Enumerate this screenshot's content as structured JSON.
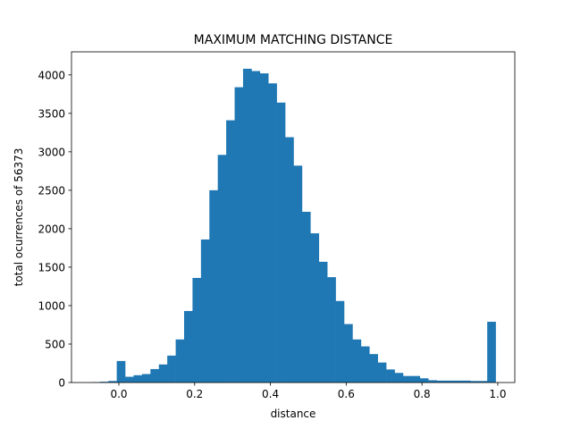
{
  "chart_data": {
    "type": "bar",
    "title": "MAXIMUM MATCHING DISTANCE",
    "xlabel": "distance",
    "ylabel": "total ocurrences of 56373",
    "xlim": [
      -0.125,
      1.045
    ],
    "ylim": [
      0,
      4300
    ],
    "xticks": [
      0.0,
      0.2,
      0.4,
      0.6,
      0.8,
      1.0
    ],
    "xtick_labels": [
      "0.0",
      "0.2",
      "0.4",
      "0.6",
      "0.8",
      "1.0"
    ],
    "yticks": [
      0,
      500,
      1000,
      1500,
      2000,
      2500,
      3000,
      3500,
      4000
    ],
    "ytick_labels": [
      "0",
      "500",
      "1000",
      "1500",
      "2000",
      "2500",
      "3000",
      "3500",
      "4000"
    ],
    "grid": false,
    "legend": "none",
    "bar_color": "#1f77b4",
    "bin_width": 0.0222,
    "bin_starts": [
      -0.0722,
      -0.05,
      -0.0278,
      -0.0056,
      0.0167,
      0.0389,
      0.0611,
      0.0833,
      0.1056,
      0.1278,
      0.15,
      0.1722,
      0.1944,
      0.2167,
      0.2389,
      0.2611,
      0.2833,
      0.3056,
      0.3278,
      0.35,
      0.3722,
      0.3944,
      0.4167,
      0.4389,
      0.4611,
      0.4833,
      0.5056,
      0.5278,
      0.55,
      0.5722,
      0.5944,
      0.6167,
      0.6389,
      0.6611,
      0.6833,
      0.7056,
      0.7278,
      0.75,
      0.7722,
      0.7944,
      0.8167,
      0.8389,
      0.8611,
      0.8833,
      0.9056,
      0.9278,
      0.95,
      0.9722,
      0.9944
    ],
    "values": [
      5,
      10,
      20,
      280,
      75,
      95,
      110,
      175,
      235,
      350,
      560,
      930,
      1360,
      1860,
      2500,
      2960,
      3410,
      3840,
      4080,
      4050,
      4020,
      3890,
      3640,
      3190,
      2820,
      2220,
      1940,
      1570,
      1370,
      1060,
      760,
      560,
      470,
      370,
      260,
      170,
      125,
      85,
      85,
      55,
      30,
      25,
      25,
      25,
      25,
      20,
      20,
      790,
      0
    ]
  }
}
